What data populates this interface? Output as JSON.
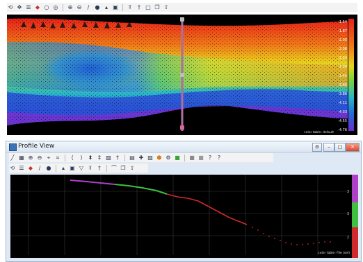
{
  "main_toolbar": {
    "icons": [
      "rotate-icon",
      "pan-icon",
      "layers-icon",
      "drop-icon",
      "circle-icon",
      "target-icon",
      "zoom-in-icon",
      "zoom-out-icon",
      "line-tool-icon",
      "point-icon",
      "marker-icon",
      "select-box-icon",
      "profile-tool-icon",
      "pin-icon",
      "rectangle-icon",
      "copy-icon",
      "export-icon"
    ]
  },
  "top_view": {
    "color_scale_labels": [
      "-1.54",
      "-1.87",
      "-2.00",
      "-2.06",
      "-2.24",
      "-3.30",
      "-3.45",
      "-3.66",
      "-3.86",
      "-4.11",
      "-4.33",
      "-4.55",
      "-4.76"
    ],
    "color_table_caption": "color table: default"
  },
  "profile_window": {
    "title": "Profile View",
    "toolbar_row1_icons": [
      "draw-line-icon",
      "fit-icon",
      "zoom-in-icon",
      "zoom-out-icon",
      "zoom-window-icon",
      "zoom-extent-icon",
      "step-back-icon",
      "step-forward-icon",
      "split-icon",
      "measure-icon",
      "select-icon",
      "pin-icon",
      "camera-icon",
      "cross-icon",
      "box-icon",
      "color-icon",
      "settings-icon",
      "green-layer-icon",
      "gray-layer-icon",
      "gray-layer-2-icon",
      "question-icon",
      "help-icon"
    ],
    "toolbar_row2_icons": [
      "rotate-icon",
      "layers-icon",
      "drop-icon",
      "line-tool-icon",
      "point-icon",
      "marker-icon",
      "select-box-icon",
      "filter-icon",
      "profile-tool-icon",
      "pin-icon",
      "lasso-icon",
      "copy-icon",
      "export-icon"
    ],
    "color_table_caption": "color table: File (sel)",
    "color_scale_labels": [
      "3",
      "3",
      "2"
    ]
  }
}
